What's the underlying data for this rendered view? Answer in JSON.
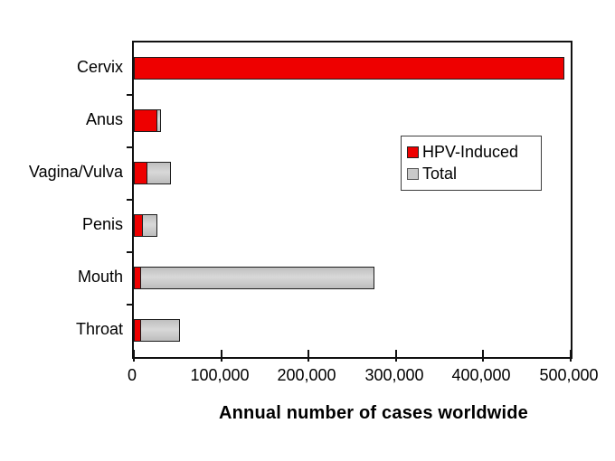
{
  "figure": {
    "background": "#ffffff"
  },
  "chart_data": {
    "type": "bar",
    "orientation": "horizontal",
    "title": "",
    "xlabel": "Annual number of cases worldwide",
    "ylabel": "",
    "categories": [
      "Cervix",
      "Anus",
      "Vagina/Vulva",
      "Penis",
      "Mouth",
      "Throat"
    ],
    "series": [
      {
        "name": "HPV-Induced",
        "color": "#ee0000",
        "values": [
          493000,
          27000,
          16000,
          10500,
          8500,
          8500
        ]
      },
      {
        "name": "Total",
        "color": "#c9c9c9",
        "values": [
          493000,
          31000,
          42000,
          27000,
          275000,
          53000
        ]
      }
    ],
    "xlim": [
      0,
      500000
    ],
    "x_ticks": [
      0,
      100000,
      200000,
      300000,
      400000,
      500000
    ],
    "x_tick_labels": [
      "0",
      "100,000",
      "200,000",
      "300,000",
      "400,000",
      "500,000"
    ],
    "grid": false,
    "legend": {
      "position": "inside-upper-right",
      "entries": [
        "HPV-Induced",
        "Total"
      ]
    },
    "bar_style": {
      "overlapping_from_zero": true,
      "border_color": "#1c1c1c"
    }
  },
  "colors": {
    "hpv_red": "#ee0000",
    "total_gray": "#c9c9c9",
    "axis_black": "#111111",
    "text_black": "#000000"
  }
}
